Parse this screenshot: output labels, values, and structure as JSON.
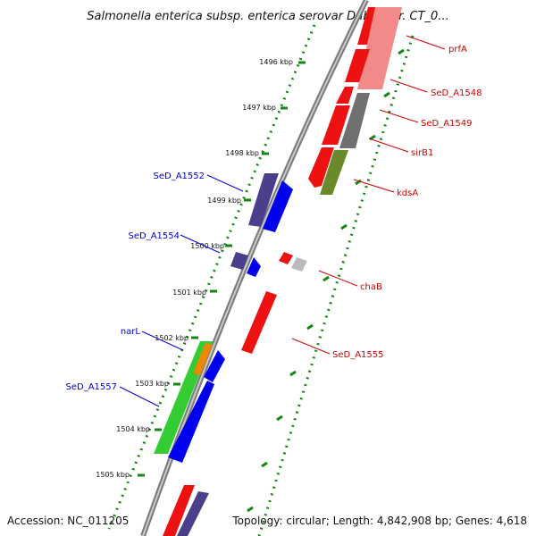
{
  "title": "Salmonella enterica subsp. enterica serovar Dublin str. CT_0...",
  "footer": {
    "accession": "Accession: NC_011205",
    "topology": "Topology: circular; Length: 4,842,908 bp; Genes: 4,618"
  },
  "colors": {
    "forward_label": "#0000cc",
    "reverse_label": "#cc0000",
    "backbone": "#8a8a8a",
    "tick": "#118811"
  },
  "scale_labels": [
    "1496 kbp",
    "1497 kbp",
    "1498 kbp",
    "1499 kbp",
    "1500 kbp",
    "1501 kbp",
    "1502 kbp",
    "1503 kbp",
    "1504 kbp",
    "1505 kbp"
  ],
  "forward_genes": [
    {
      "label": "SeD_A1552"
    },
    {
      "label": "SeD_A1554"
    },
    {
      "label": "narL"
    },
    {
      "label": "SeD_A1557"
    }
  ],
  "reverse_genes": [
    {
      "label": "prfA"
    },
    {
      "label": "SeD_A1548"
    },
    {
      "label": "SeD_A1549"
    },
    {
      "label": "sirB1"
    },
    {
      "label": "kdsA"
    },
    {
      "label": "chaB"
    },
    {
      "label": "SeD_A1555"
    }
  ]
}
